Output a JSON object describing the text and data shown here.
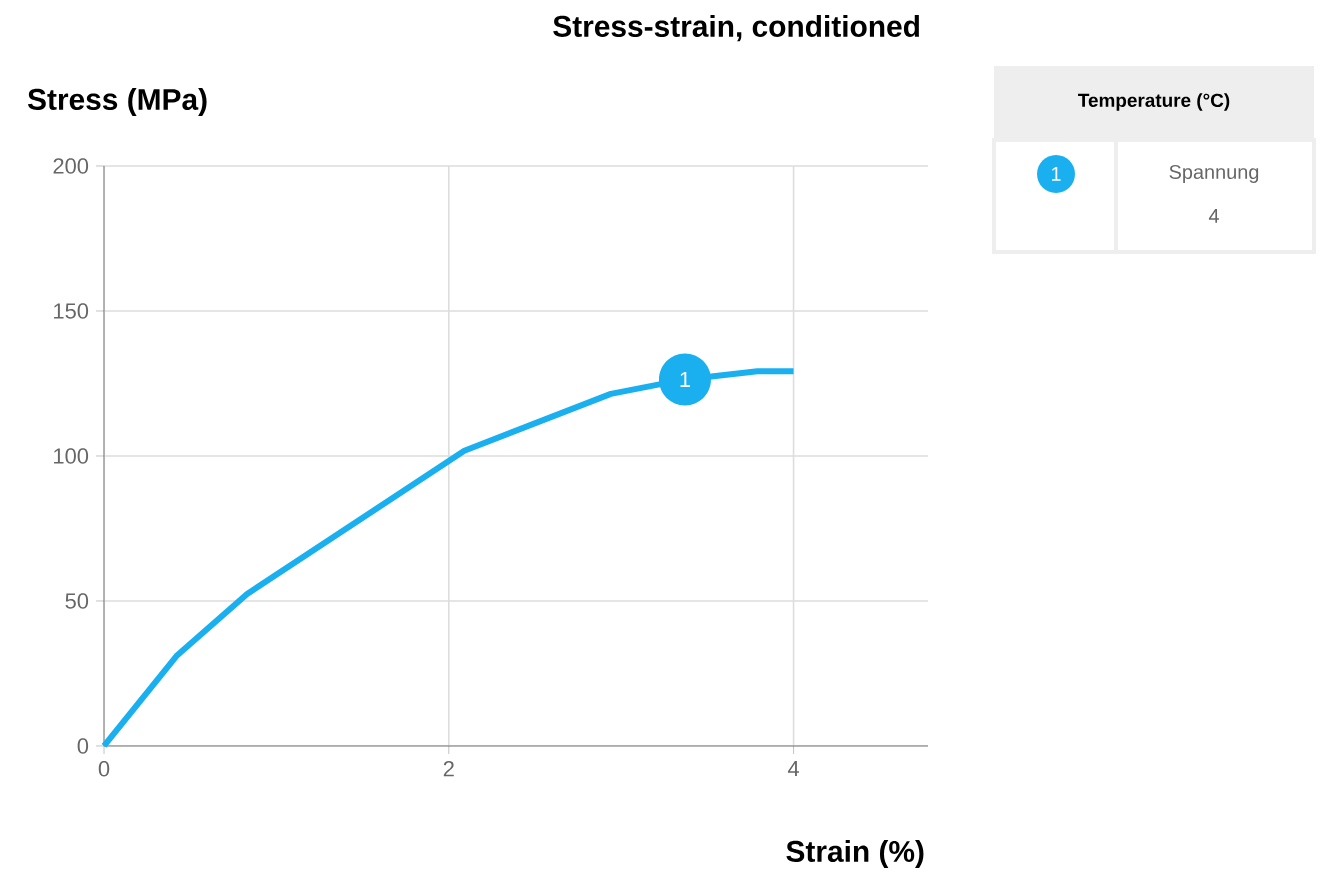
{
  "chart_data": {
    "type": "line",
    "title": "Stress-strain, conditioned",
    "xlabel": "Strain (%)",
    "ylabel": "Stress (MPa)",
    "legend_title": "Temperature (°C)",
    "series": [
      {
        "name": "Spannung",
        "color": "#1ab0f0",
        "x": [
          0,
          0.42,
          0.83,
          2.09,
          2.94,
          3.37,
          3.79,
          4.0
        ],
        "values": [
          0,
          31,
          52.4,
          101.8,
          121.4,
          126.4,
          129.2,
          129.2
        ]
      }
    ],
    "annotations": [
      {
        "text": "1",
        "x": 3.37,
        "y": 126.4
      },
      "4"
    ],
    "xlim": [
      0,
      4.78
    ],
    "ylim": [
      0,
      200
    ],
    "xticks": [
      0,
      2,
      4
    ],
    "yticks": [
      0,
      50,
      100,
      150,
      200
    ],
    "grid": true,
    "legend": "top right"
  }
}
